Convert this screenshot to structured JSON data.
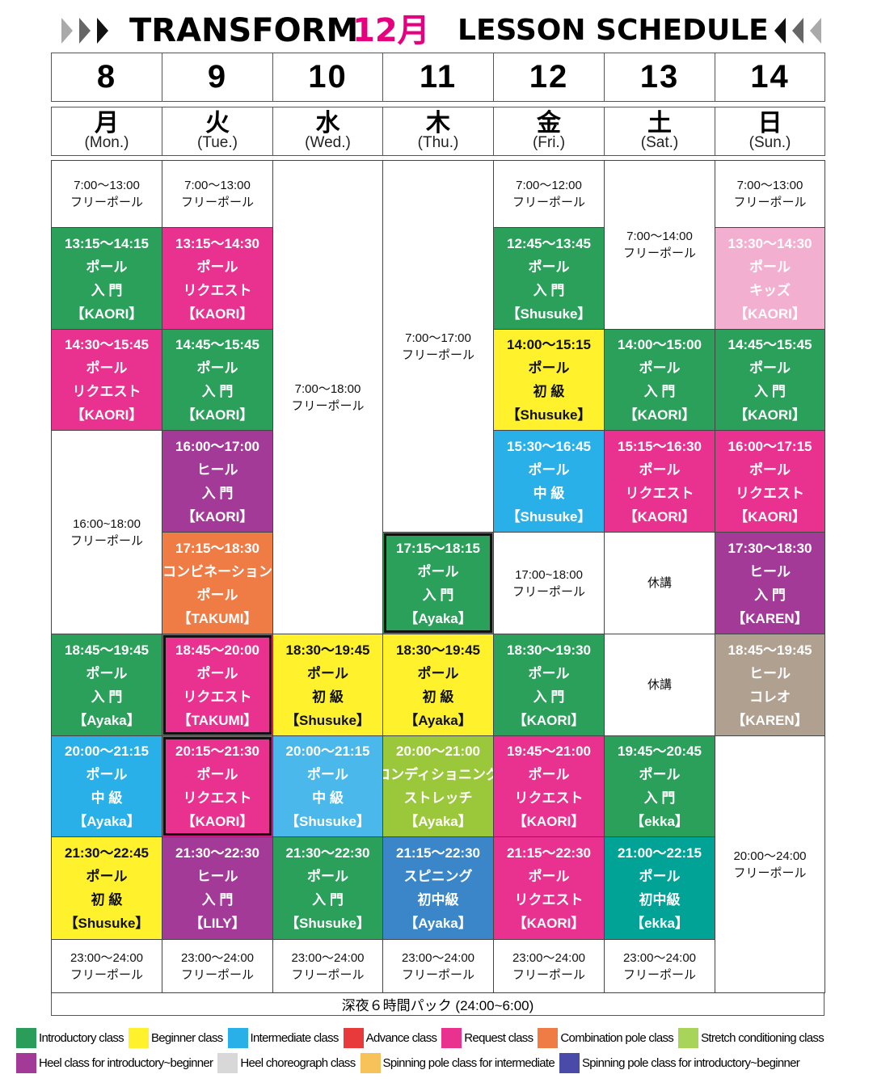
{
  "header": {
    "title_left": "TRANSFORM",
    "title_month": "12月",
    "title_right": "LESSON SCHEDULE"
  },
  "dates": [
    "8",
    "9",
    "10",
    "11",
    "12",
    "13",
    "14"
  ],
  "weekdays": [
    {
      "kanji": "月",
      "en": "(Mon.)"
    },
    {
      "kanji": "火",
      "en": "(Tue.)"
    },
    {
      "kanji": "水",
      "en": "(Wed.)"
    },
    {
      "kanji": "木",
      "en": "(Thu.)"
    },
    {
      "kanji": "金",
      "en": "(Fri.)"
    },
    {
      "kanji": "土",
      "en": "(Sat.)"
    },
    {
      "kanji": "日",
      "en": "(Sun.)"
    }
  ],
  "columns": [
    {
      "blocks": [
        {
          "color": "#ffffff",
          "lines": [
            "7:00〜13:00",
            "フリーポール"
          ]
        },
        {
          "color": "#2aa05a",
          "lines": [
            "13:15〜14:15",
            "ポール",
            "入 門",
            "【KAORI】"
          ]
        },
        {
          "color": "#e9318f",
          "lines": [
            "14:30〜15:45",
            "ポール",
            "リクエスト",
            "【KAORI】"
          ]
        },
        {
          "color": "#ffffff",
          "lines": [
            "16:00~18:00",
            "フリーポール"
          ]
        },
        {
          "color": "#2aa05a",
          "lines": [
            "18:45〜19:45",
            "ポール",
            "入 門",
            "【Ayaka】"
          ]
        },
        {
          "color": "#2ab0e8",
          "lines": [
            "20:00〜21:15",
            "ポール",
            "中 級",
            "【Ayaka】"
          ]
        },
        {
          "color": "#fff22d",
          "lines": [
            "21:30〜22:45",
            "ポール",
            "初 級",
            "【Shusuke】"
          ]
        },
        {
          "color": "#ffffff",
          "lines": [
            "23:00〜24:00",
            "フリーポール"
          ]
        }
      ]
    },
    {
      "blocks": [
        {
          "color": "#ffffff",
          "lines": [
            "7:00〜13:00",
            "フリーポール"
          ]
        },
        {
          "color": "#e9318f",
          "lines": [
            "13:15〜14:30",
            "ポール",
            "リクエスト",
            "【KAORI】"
          ]
        },
        {
          "color": "#2aa05a",
          "lines": [
            "14:45〜15:45",
            "ポール",
            "入 門",
            "【KAORI】"
          ]
        },
        {
          "color": "#a33a98",
          "lines": [
            "16:00〜17:00",
            "ヒール",
            "入 門",
            "【KAORI】"
          ]
        },
        {
          "color": "#ef7b45",
          "lines": [
            "17:15〜18:30",
            "コンビネーション",
            "ポール",
            "【TAKUMI】"
          ]
        },
        {
          "color": "#e9318f",
          "lines": [
            "18:45〜20:00",
            "ポール",
            "リクエスト",
            "【TAKUMI】"
          ]
        },
        {
          "color": "#e9318f",
          "lines": [
            "20:15〜21:30",
            "ポール",
            "リクエスト",
            "【KAORI】"
          ]
        },
        {
          "color": "#a33a98",
          "lines": [
            "21:30〜22:30",
            "ヒール",
            "入 門",
            "【LILY】"
          ]
        },
        {
          "color": "#ffffff",
          "lines": [
            "23:00〜24:00",
            "フリーポール"
          ]
        }
      ]
    },
    {
      "blocks": [
        {
          "color": "#ffffff",
          "lines": [
            "7:00〜18:00",
            "フリーポール"
          ]
        },
        {
          "color": "#fff22d",
          "lines": [
            "18:30〜19:45",
            "ポール",
            "初 級",
            "【Shusuke】"
          ]
        },
        {
          "color": "#4ab8ea",
          "lines": [
            "20:00〜21:15",
            "ポール",
            "中 級",
            "【Shusuke】"
          ]
        },
        {
          "color": "#2aa05a",
          "lines": [
            "21:30〜22:30",
            "ポール",
            "入 門",
            "【Shusuke】"
          ]
        },
        {
          "color": "#ffffff",
          "lines": [
            "23:00〜24:00",
            "フリーポール"
          ]
        }
      ]
    },
    {
      "blocks": [
        {
          "color": "#ffffff",
          "lines": [
            "7:00〜17:00",
            "フリーポール"
          ]
        },
        {
          "color": "#2aa05a",
          "lines": [
            "17:15〜18:15",
            "ポール",
            "入 門",
            "【Ayaka】"
          ]
        },
        {
          "color": "#fff22d",
          "lines": [
            "18:30〜19:45",
            "ポール",
            "初 級",
            "【Ayaka】"
          ]
        },
        {
          "color": "#9ac83a",
          "lines": [
            "20:00〜21:00",
            "コンディショニング",
            "ストレッチ",
            "【Ayaka】"
          ]
        },
        {
          "color": "#3a86c8",
          "lines": [
            "21:15〜22:30",
            "スピニング",
            "初中級",
            "【Ayaka】"
          ]
        },
        {
          "color": "#ffffff",
          "lines": [
            "23:00〜24:00",
            "フリーポール"
          ]
        }
      ]
    },
    {
      "blocks": [
        {
          "color": "#ffffff",
          "lines": [
            "7:00〜12:00",
            "フリーポール"
          ]
        },
        {
          "color": "#2aa05a",
          "lines": [
            "12:45〜13:45",
            "ポール",
            "入 門",
            "【Shusuke】"
          ]
        },
        {
          "color": "#fff22d",
          "lines": [
            "14:00〜15:15",
            "ポール",
            "初 級",
            "【Shusuke】"
          ]
        },
        {
          "color": "#2ab0e8",
          "lines": [
            "15:30〜16:45",
            "ポール",
            "中 級",
            "【Shusuke】"
          ]
        },
        {
          "color": "#ffffff",
          "lines": [
            "17:00~18:00",
            "フリーポール"
          ]
        },
        {
          "color": "#2aa05a",
          "lines": [
            "18:30〜19:30",
            "ポール",
            "入 門",
            "【KAORI】"
          ]
        },
        {
          "color": "#e9318f",
          "lines": [
            "19:45〜21:00",
            "ポール",
            "リクエスト",
            "【KAORI】"
          ]
        },
        {
          "color": "#e9318f",
          "lines": [
            "21:15〜22:30",
            "ポール",
            "リクエスト",
            "【KAORI】"
          ]
        },
        {
          "color": "#ffffff",
          "lines": [
            "23:00〜24:00",
            "フリーポール"
          ]
        }
      ]
    },
    {
      "blocks": [
        {
          "color": "#ffffff",
          "lines": [
            "7:00〜14:00",
            "フリーポール"
          ]
        },
        {
          "color": "#2aa05a",
          "lines": [
            "14:00〜15:00",
            "ポール",
            "入 門",
            "【KAORI】"
          ]
        },
        {
          "color": "#e9318f",
          "lines": [
            "15:15〜16:30",
            "ポール",
            "リクエスト",
            "【KAORI】"
          ]
        },
        {
          "color": "#ffffff",
          "lines": [
            "休講"
          ]
        },
        {
          "color": "#ffffff",
          "lines": [
            "休講"
          ]
        },
        {
          "color": "#2aa05a",
          "lines": [
            "19:45〜20:45",
            "ポール",
            "入 門",
            "【ekka】"
          ]
        },
        {
          "color": "#00a396",
          "lines": [
            "21:00〜22:15",
            "ポール",
            "初中級",
            "【ekka】"
          ]
        },
        {
          "color": "#ffffff",
          "lines": [
            "23:00〜24:00",
            "フリーポール"
          ]
        }
      ]
    },
    {
      "blocks": [
        {
          "color": "#ffffff",
          "lines": [
            "7:00〜13:00",
            "フリーポール"
          ]
        },
        {
          "color": "#f3afcf",
          "lines": [
            "13:30〜14:30",
            "ポール",
            "キッズ",
            "【KAORI】"
          ]
        },
        {
          "color": "#2aa05a",
          "lines": [
            "14:45〜15:45",
            "ポール",
            "入 門",
            "【KAORI】"
          ]
        },
        {
          "color": "#e9318f",
          "lines": [
            "16:00〜17:15",
            "ポール",
            "リクエスト",
            "【KAORI】"
          ]
        },
        {
          "color": "#a33a98",
          "lines": [
            "17:30〜18:30",
            "ヒール",
            "入 門",
            "【KAREN】"
          ]
        },
        {
          "color": "#b0a090",
          "lines": [
            "18:45〜19:45",
            "ヒール",
            "コレオ",
            "【KAREN】"
          ]
        },
        {
          "color": "#ffffff",
          "lines": [
            "20:00〜24:00",
            "フリーポール"
          ]
        }
      ]
    }
  ],
  "footer": "深夜６時間パック (24:00~6:00)",
  "legend_rows": [
    [
      {
        "color": "#2a9d5a",
        "label": "Introductory class"
      },
      {
        "color": "#fff22d",
        "label": "Beginner class"
      },
      {
        "color": "#2ab0e8",
        "label": "Intermediate class"
      },
      {
        "color": "#e83a3a",
        "label": "Advance class"
      },
      {
        "color": "#e9318f",
        "label": "Request class"
      },
      {
        "color": "#ef7b45",
        "label": "Combination pole class"
      },
      {
        "color": "#a9d45a",
        "label": "Stretch conditioning class"
      }
    ],
    [
      {
        "color": "#a33a98",
        "label": "Heel class for introductory~beginner"
      },
      {
        "color": "#d8d8d8",
        "label": "Heel choreograph class"
      },
      {
        "color": "#f7c25a",
        "label": "Spinning pole class for intermediate"
      },
      {
        "color": "#4a4aa8",
        "label": "Spinning pole class for introductory~beginner"
      }
    ]
  ]
}
